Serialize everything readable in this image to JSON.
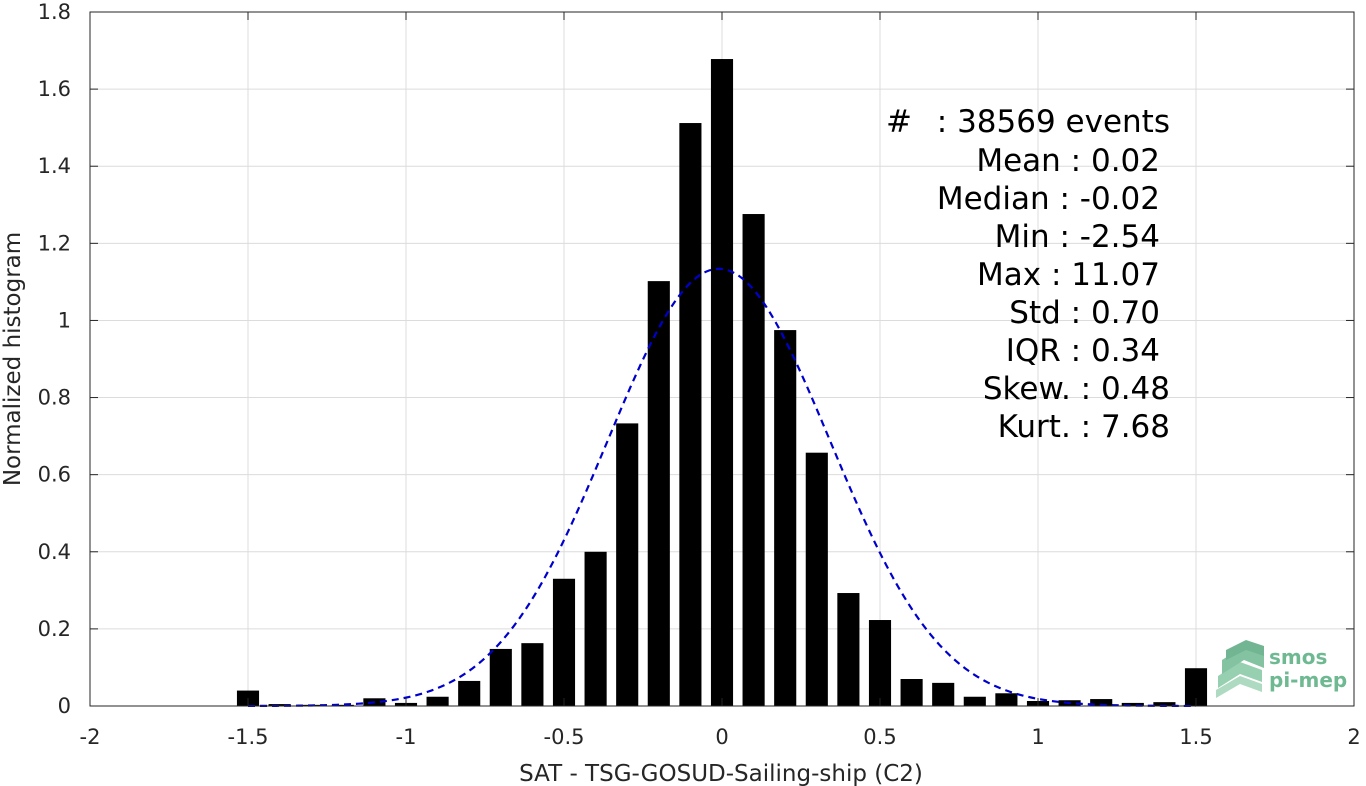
{
  "chart_data": {
    "type": "bar",
    "xlabel": "SAT - TSG-GOSUD-Sailing-ship (C2)",
    "ylabel": "Normalized histogram",
    "xlim": [
      -2,
      2
    ],
    "ylim": [
      0,
      1.8
    ],
    "xticks": [
      "-2",
      "-1.5",
      "-1",
      "-0.5",
      "0",
      "0.5",
      "1",
      "1.5",
      "2"
    ],
    "yticks": [
      "0",
      "0.2",
      "0.4",
      "0.6",
      "0.8",
      "1",
      "1.2",
      "1.4",
      "1.6",
      "1.8"
    ],
    "grid": true,
    "bar_color": "#000000",
    "fit_color": "#0000cc",
    "bars": [
      {
        "x": -1.5,
        "y": 0.04
      },
      {
        "x": -1.4,
        "y": 0.005
      },
      {
        "x": -1.3,
        "y": 0.003
      },
      {
        "x": -1.2,
        "y": 0.003
      },
      {
        "x": -1.1,
        "y": 0.02
      },
      {
        "x": -1.0,
        "y": 0.008
      },
      {
        "x": -0.9,
        "y": 0.024
      },
      {
        "x": -0.8,
        "y": 0.065
      },
      {
        "x": -0.7,
        "y": 0.148
      },
      {
        "x": -0.6,
        "y": 0.163
      },
      {
        "x": -0.5,
        "y": 0.33
      },
      {
        "x": -0.4,
        "y": 0.4
      },
      {
        "x": -0.3,
        "y": 0.733
      },
      {
        "x": -0.2,
        "y": 1.102
      },
      {
        "x": -0.1,
        "y": 1.512
      },
      {
        "x": 0.0,
        "y": 1.678
      },
      {
        "x": 0.1,
        "y": 1.276
      },
      {
        "x": 0.2,
        "y": 0.975
      },
      {
        "x": 0.3,
        "y": 0.657
      },
      {
        "x": 0.4,
        "y": 0.293
      },
      {
        "x": 0.5,
        "y": 0.223
      },
      {
        "x": 0.6,
        "y": 0.07
      },
      {
        "x": 0.7,
        "y": 0.06
      },
      {
        "x": 0.8,
        "y": 0.024
      },
      {
        "x": 0.9,
        "y": 0.033
      },
      {
        "x": 1.0,
        "y": 0.013
      },
      {
        "x": 1.1,
        "y": 0.015
      },
      {
        "x": 1.2,
        "y": 0.018
      },
      {
        "x": 1.3,
        "y": 0.008
      },
      {
        "x": 1.4,
        "y": 0.01
      },
      {
        "x": 1.5,
        "y": 0.098
      }
    ],
    "fit": {
      "type": "gaussian",
      "mean": -0.01,
      "std": 0.352,
      "peak": 1.134,
      "style": "dashed"
    },
    "stats": [
      {
        "label": "#",
        "value": " : 38569 events"
      },
      {
        "label": "Mean",
        "value": " : 0.02"
      },
      {
        "label": "Median",
        "value": " : -0.02"
      },
      {
        "label": "Min",
        "value": " : -2.54"
      },
      {
        "label": "Max",
        "value": " : 11.07"
      },
      {
        "label": "Std",
        "value": " : 0.70"
      },
      {
        "label": "IQR",
        "value": " : 0.34"
      },
      {
        "label": "Skew.",
        "value": " : 0.48"
      },
      {
        "label": "Kurt.",
        "value": " : 7.68"
      }
    ]
  },
  "logo": {
    "line1": "smos",
    "line2": "pi-mep",
    "icon": "stacked-layers-icon",
    "color": "#6fb992"
  }
}
